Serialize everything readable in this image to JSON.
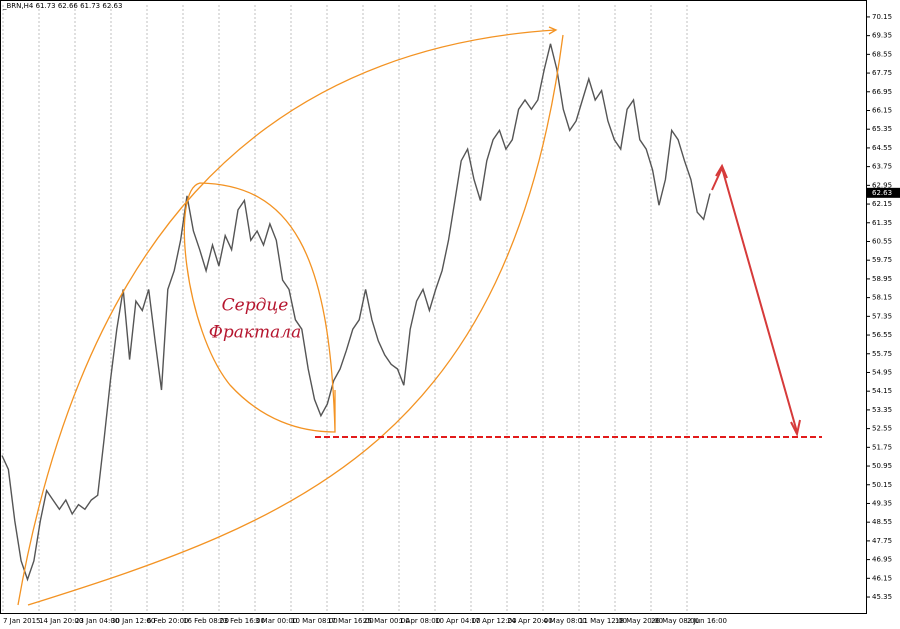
{
  "chart_data": {
    "type": "line",
    "title": "_BRN,H4  61.73 62.66 61.73 62.63",
    "x_labels": [
      "7 Jan 2015",
      "14 Jan 20:00",
      "23 Jan 04:00",
      "30 Jan 12:00",
      "6 Feb 20:00",
      "16 Feb 08:00",
      "23 Feb 16:00",
      "3 Mar 00:00",
      "10 Mar 08:00",
      "17 Mar 16:00",
      "25 Mar 00:00",
      "1 Apr 08:00",
      "10 Apr 04:00",
      "17 Apr 12:00",
      "24 Apr 20:00",
      "4 May 08:00",
      "11 May 12:00",
      "18 May 20:00",
      "26 May 08:00",
      "2 Jun 16:00"
    ],
    "series": [
      {
        "name": "BRN",
        "color": "#555555",
        "values": [
          51.4,
          50.8,
          48.6,
          46.9,
          46.1,
          46.9,
          48.6,
          49.9,
          49.5,
          49.1,
          49.5,
          48.9,
          49.3,
          49.1,
          49.5,
          49.7,
          52.1,
          54.6,
          56.8,
          58.5,
          55.5,
          58.0,
          57.6,
          58.5,
          56.3,
          54.2,
          58.5,
          59.3,
          60.6,
          62.5,
          61.0,
          60.2,
          59.3,
          60.4,
          59.5,
          60.8,
          60.2,
          61.9,
          62.3,
          60.6,
          61.0,
          60.4,
          61.3,
          60.6,
          58.9,
          58.5,
          57.2,
          56.8,
          55.1,
          53.8,
          53.1,
          53.6,
          54.6,
          55.1,
          55.9,
          56.8,
          57.2,
          58.5,
          57.2,
          56.3,
          55.7,
          55.3,
          55.1,
          54.4,
          56.8,
          58.0,
          58.5,
          57.6,
          58.5,
          59.3,
          60.6,
          62.3,
          64.0,
          64.5,
          63.2,
          62.3,
          64.0,
          64.9,
          65.3,
          64.5,
          64.9,
          66.2,
          66.6,
          66.2,
          66.6,
          67.9,
          69.0,
          67.9,
          66.2,
          65.3,
          65.7,
          66.6,
          67.5,
          66.6,
          67.0,
          65.7,
          64.9,
          64.5,
          66.2,
          66.6,
          64.9,
          64.5,
          63.6,
          62.1,
          63.2,
          65.3,
          64.9,
          64.0,
          63.2,
          61.8,
          61.5,
          62.6
        ]
      }
    ],
    "ylim": [
      44.71,
      70.66
    ],
    "yticks": [
      45.35,
      46.15,
      46.95,
      47.75,
      48.55,
      49.35,
      50.15,
      50.95,
      51.75,
      52.55,
      53.35,
      54.15,
      54.95,
      55.75,
      56.55,
      57.35,
      58.15,
      58.95,
      59.75,
      60.55,
      61.35,
      62.15,
      62.95,
      63.75,
      64.55,
      65.35,
      66.15,
      66.95,
      67.75,
      68.55,
      69.35,
      70.15
    ],
    "current_price": 62.63,
    "annotations": [
      "Сердце",
      "Фрактала"
    ],
    "grid": true
  }
}
